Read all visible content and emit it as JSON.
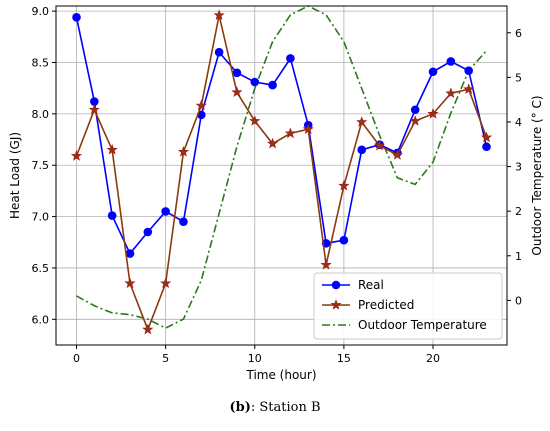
{
  "caption": {
    "tag": "(b)",
    "text": ": Station B"
  },
  "chart_data": {
    "type": "line",
    "xlabel": "Time (hour)",
    "ylabel": "Heat Load (GJ)",
    "y2label": "Outdoor Temperature (° C)",
    "xlim": [
      -1.15,
      24.15
    ],
    "ylim": [
      5.75,
      9.05
    ],
    "y2lim": [
      -1.0,
      6.6
    ],
    "x_ticks": [
      0,
      5,
      10,
      15,
      20
    ],
    "y_ticks": [
      6.0,
      6.5,
      7.0,
      7.5,
      8.0,
      8.5,
      9.0
    ],
    "y_tick_labels": [
      "6.0",
      "6.5",
      "7.0",
      "7.5",
      "8.0",
      "8.5",
      "9.0"
    ],
    "y2_ticks": [
      0,
      1,
      2,
      3,
      4,
      5,
      6
    ],
    "grid": true,
    "legend_position": "lower-right",
    "x": [
      0,
      1,
      2,
      3,
      4,
      5,
      6,
      7,
      8,
      9,
      10,
      11,
      12,
      13,
      14,
      15,
      16,
      17,
      18,
      19,
      20,
      21,
      22,
      23
    ],
    "series": [
      {
        "name": "Real",
        "axis": "left",
        "color": "#0000ff",
        "marker": "circle",
        "values": [
          8.94,
          8.12,
          7.01,
          6.64,
          6.85,
          7.05,
          6.95,
          7.99,
          8.6,
          8.4,
          8.31,
          8.28,
          8.54,
          7.89,
          6.74,
          6.77,
          7.65,
          7.7,
          7.62,
          8.04,
          8.41,
          8.51,
          8.42,
          7.68
        ]
      },
      {
        "name": "Predicted",
        "axis": "left",
        "color": "#8b3a0e",
        "marker": "star",
        "values": [
          7.59,
          8.04,
          7.65,
          6.35,
          5.9,
          6.35,
          7.63,
          8.08,
          8.96,
          8.21,
          7.93,
          7.71,
          7.81,
          7.85,
          6.53,
          7.3,
          7.92,
          7.69,
          7.6,
          7.93,
          8.0,
          8.2,
          8.24,
          7.77
        ]
      },
      {
        "name": "Outdoor Temperature",
        "axis": "right",
        "color": "#2a7a1a",
        "line_style": "dashdot",
        "x": [
          0,
          1,
          2,
          3,
          4,
          5,
          6,
          7,
          8,
          9,
          10,
          11,
          12,
          13,
          14,
          15,
          16,
          17,
          18,
          19,
          20,
          21,
          22,
          23
        ],
        "values": [
          0.1,
          -0.12,
          -0.28,
          -0.32,
          -0.42,
          -0.62,
          -0.42,
          0.45,
          1.95,
          3.45,
          4.75,
          5.8,
          6.4,
          6.6,
          6.4,
          5.8,
          4.75,
          3.7,
          2.75,
          2.6,
          3.1,
          4.2,
          5.15,
          5.6
        ]
      }
    ]
  }
}
